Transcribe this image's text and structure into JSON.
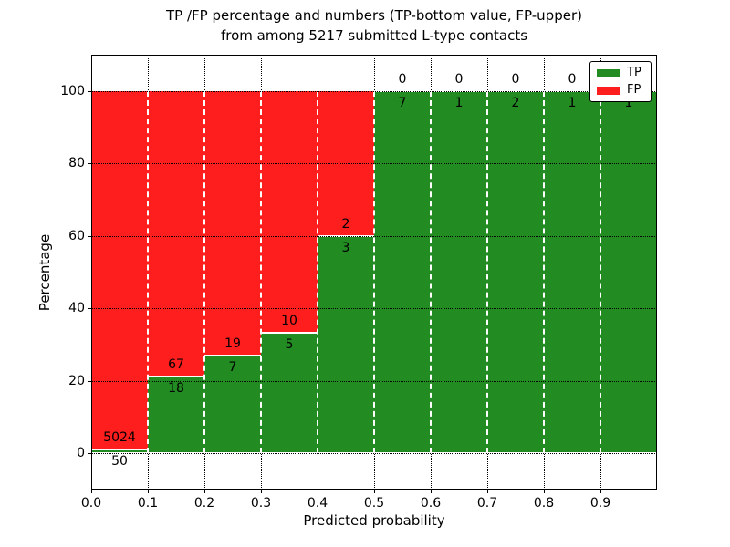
{
  "chart_data": {
    "type": "bar",
    "stacked": true,
    "orientation": "vertical",
    "title_lines": [
      "TP /FP percentage and numbers (TP-bottom value, FP-upper)",
      "from among 5217 submitted L-type contacts"
    ],
    "xlabel": "Predicted probability",
    "ylabel": "Percentage",
    "xlim": [
      0.0,
      1.0
    ],
    "ylim": [
      -10,
      110
    ],
    "bin_edges": [
      0.0,
      0.1,
      0.2,
      0.3,
      0.4,
      0.5,
      0.6,
      0.7,
      0.8,
      0.9,
      1.0
    ],
    "series": [
      {
        "name": "TP",
        "color": "#228B22",
        "counts": [
          50,
          18,
          7,
          5,
          3,
          7,
          1,
          2,
          1,
          1
        ]
      },
      {
        "name": "FP",
        "color": "#FF1E1E",
        "counts": [
          5024,
          67,
          19,
          10,
          2,
          0,
          0,
          0,
          0,
          0
        ]
      }
    ],
    "tp_percent": [
      0.985,
      21.176,
      26.923,
      33.333,
      60.0,
      100.0,
      100.0,
      100.0,
      100.0,
      100.0
    ],
    "x_tick_labels": [
      "0.0",
      "0.1",
      "0.2",
      "0.3",
      "0.4",
      "0.5",
      "0.6",
      "0.7",
      "0.8",
      "0.9"
    ],
    "y_ticks": [
      0,
      20,
      40,
      60,
      80,
      100
    ],
    "grid": true,
    "grid_style": "dotted",
    "legend": {
      "position": "upper-right",
      "entries": [
        {
          "label": "TP",
          "color": "#228B22"
        },
        {
          "label": "FP",
          "color": "#FF1E1E"
        }
      ]
    }
  },
  "colors": {
    "tp": "#228B22",
    "fp": "#FF1E1E",
    "grid": "#000000",
    "text": "#000000",
    "plot_border": "#000000",
    "legend_bg": "#ffffff",
    "legend_border": "#000000",
    "background": "#ffffff"
  }
}
